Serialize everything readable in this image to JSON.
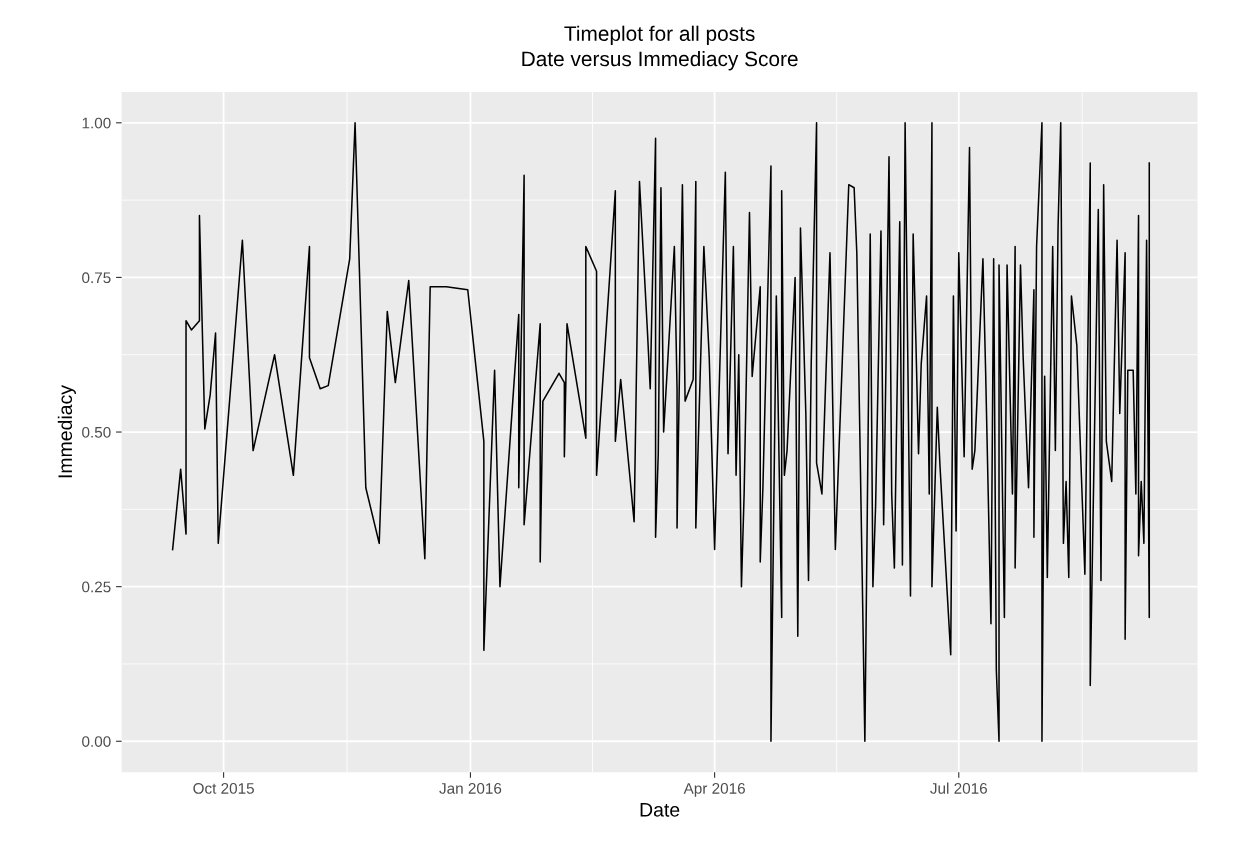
{
  "chart_data": {
    "type": "line",
    "title": "Timeplot for all posts",
    "subtitle": "Date versus Immediacy Score",
    "xlabel": "Date",
    "ylabel": "Immediacy",
    "x": [
      "2015-09-12",
      "2015-09-15",
      "2015-09-17",
      "2015-09-17",
      "2015-09-19",
      "2015-09-22",
      "2015-09-22",
      "2015-09-24",
      "2015-09-26",
      "2015-09-28",
      "2015-09-29",
      "2015-10-08",
      "2015-10-12",
      "2015-10-20",
      "2015-10-27",
      "2015-11-02",
      "2015-11-02",
      "2015-11-06",
      "2015-11-09",
      "2015-11-17",
      "2015-11-19",
      "2015-11-23",
      "2015-11-28",
      "2015-12-01",
      "2015-12-04",
      "2015-12-09",
      "2015-12-15",
      "2015-12-17",
      "2015-12-23",
      "2015-12-31",
      "2016-01-06",
      "2016-01-06",
      "2016-01-10",
      "2016-01-12",
      "2016-01-19",
      "2016-01-19",
      "2016-01-21",
      "2016-01-21",
      "2016-01-27",
      "2016-01-27",
      "2016-01-28",
      "2016-02-03",
      "2016-02-05",
      "2016-02-05",
      "2016-02-06",
      "2016-02-13",
      "2016-02-13",
      "2016-02-17",
      "2016-02-17",
      "2016-02-24",
      "2016-02-24",
      "2016-02-26",
      "2016-03-02",
      "2016-03-04",
      "2016-03-07",
      "2016-03-08",
      "2016-03-10",
      "2016-03-10",
      "2016-03-11",
      "2016-03-12",
      "2016-03-13",
      "2016-03-17",
      "2016-03-18",
      "2016-03-18",
      "2016-03-20",
      "2016-03-21",
      "2016-03-24",
      "2016-03-25",
      "2016-03-25",
      "2016-03-28",
      "2016-03-30",
      "2016-04-01",
      "2016-04-05",
      "2016-04-06",
      "2016-04-08",
      "2016-04-09",
      "2016-04-10",
      "2016-04-11",
      "2016-04-12",
      "2016-04-14",
      "2016-04-15",
      "2016-04-18",
      "2016-04-18",
      "2016-04-19",
      "2016-04-22",
      "2016-04-22",
      "2016-04-24",
      "2016-04-26",
      "2016-04-26",
      "2016-04-27",
      "2016-04-28",
      "2016-05-01",
      "2016-05-02",
      "2016-05-03",
      "2016-05-05",
      "2016-05-06",
      "2016-05-07",
      "2016-05-09",
      "2016-05-09",
      "2016-05-11",
      "2016-05-14",
      "2016-05-16",
      "2016-05-21",
      "2016-05-23",
      "2016-05-24",
      "2016-05-26",
      "2016-05-27",
      "2016-05-29",
      "2016-05-30",
      "2016-05-31",
      "2016-06-02",
      "2016-06-03",
      "2016-06-05",
      "2016-06-06",
      "2016-06-07",
      "2016-06-09",
      "2016-06-10",
      "2016-06-11",
      "2016-06-12",
      "2016-06-13",
      "2016-06-14",
      "2016-06-15",
      "2016-06-16",
      "2016-06-17",
      "2016-06-19",
      "2016-06-20",
      "2016-06-21",
      "2016-06-21",
      "2016-06-23",
      "2016-06-24",
      "2016-06-28",
      "2016-06-29",
      "2016-06-30",
      "2016-07-01",
      "2016-07-03",
      "2016-07-05",
      "2016-07-06",
      "2016-07-07",
      "2016-07-10",
      "2016-07-11",
      "2016-07-13",
      "2016-07-14",
      "2016-07-15",
      "2016-07-16",
      "2016-07-16",
      "2016-07-18",
      "2016-07-19",
      "2016-07-21",
      "2016-07-22",
      "2016-07-22",
      "2016-07-24",
      "2016-07-25",
      "2016-07-27",
      "2016-07-29",
      "2016-07-29",
      "2016-07-30",
      "2016-08-01",
      "2016-08-01",
      "2016-08-02",
      "2016-08-03",
      "2016-08-05",
      "2016-08-06",
      "2016-08-07",
      "2016-08-08",
      "2016-08-09",
      "2016-08-10",
      "2016-08-11",
      "2016-08-12",
      "2016-08-14",
      "2016-08-17",
      "2016-08-19",
      "2016-08-19",
      "2016-08-20",
      "2016-08-22",
      "2016-08-23",
      "2016-08-24",
      "2016-08-25",
      "2016-08-27",
      "2016-08-29",
      "2016-08-30",
      "2016-09-01",
      "2016-09-01",
      "2016-09-02",
      "2016-09-04",
      "2016-09-05",
      "2016-09-06",
      "2016-09-06",
      "2016-09-07",
      "2016-09-08",
      "2016-09-09",
      "2016-09-10",
      "2016-09-10"
    ],
    "series": [
      {
        "color": "#000000",
        "values": [
          0.31,
          0.44,
          0.335,
          0.68,
          0.665,
          0.68,
          0.85,
          0.505,
          0.56,
          0.66,
          0.32,
          0.81,
          0.47,
          0.625,
          0.43,
          0.8,
          0.62,
          0.57,
          0.575,
          0.78,
          1.0,
          0.41,
          0.32,
          0.695,
          0.58,
          0.745,
          0.295,
          0.735,
          0.735,
          0.73,
          0.485,
          0.147,
          0.6,
          0.25,
          0.69,
          0.41,
          0.915,
          0.35,
          0.675,
          0.29,
          0.55,
          0.595,
          0.58,
          0.46,
          0.675,
          0.49,
          0.8,
          0.76,
          0.43,
          0.89,
          0.485,
          0.585,
          0.355,
          0.905,
          0.66,
          0.57,
          0.975,
          0.33,
          0.465,
          0.895,
          0.5,
          0.8,
          0.57,
          0.345,
          0.9,
          0.55,
          0.585,
          0.905,
          0.345,
          0.8,
          0.62,
          0.31,
          0.92,
          0.465,
          0.8,
          0.43,
          0.625,
          0.25,
          0.4,
          0.855,
          0.59,
          0.735,
          0.29,
          0.41,
          0.93,
          0.0,
          0.72,
          0.2,
          0.89,
          0.43,
          0.47,
          0.75,
          0.17,
          0.83,
          0.53,
          0.26,
          0.61,
          1.0,
          0.45,
          0.4,
          0.79,
          0.31,
          0.9,
          0.895,
          0.79,
          0.27,
          0.0,
          0.82,
          0.25,
          0.38,
          0.825,
          0.35,
          0.945,
          0.4,
          0.28,
          0.84,
          0.285,
          1.0,
          0.62,
          0.235,
          0.82,
          0.65,
          0.465,
          0.61,
          0.72,
          0.4,
          1.0,
          0.25,
          0.54,
          0.445,
          0.14,
          0.72,
          0.34,
          0.79,
          0.46,
          0.96,
          0.44,
          0.47,
          0.78,
          0.6,
          0.19,
          0.78,
          0.115,
          0.0,
          0.77,
          0.2,
          0.77,
          0.4,
          0.8,
          0.28,
          0.77,
          0.62,
          0.41,
          0.73,
          0.33,
          0.8,
          1.0,
          0.0,
          0.59,
          0.265,
          0.8,
          0.47,
          0.83,
          1.0,
          0.32,
          0.42,
          0.265,
          0.72,
          0.64,
          0.27,
          0.935,
          0.09,
          0.35,
          0.86,
          0.26,
          0.9,
          0.485,
          0.42,
          0.81,
          0.53,
          0.79,
          0.165,
          0.6,
          0.6,
          0.4,
          0.85,
          0.3,
          0.42,
          0.32,
          0.81,
          0.2,
          0.935
        ]
      }
    ],
    "xlim": [
      "2015-08-24",
      "2016-09-28"
    ],
    "xticks": [
      {
        "value": "2015-10-01",
        "label": "Oct 2015"
      },
      {
        "value": "2016-01-01",
        "label": "Jan 2016"
      },
      {
        "value": "2016-04-01",
        "label": "Apr 2016"
      },
      {
        "value": "2016-07-01",
        "label": "Jul 2016"
      }
    ],
    "ylim": [
      -0.05,
      1.05
    ],
    "yticks": [
      {
        "value": 0,
        "label": "0.00"
      },
      {
        "value": 0.25,
        "label": "0.25"
      },
      {
        "value": 0.5,
        "label": "0.50"
      },
      {
        "value": 0.75,
        "label": "0.75"
      },
      {
        "value": 1,
        "label": "1.00"
      }
    ],
    "grid": true,
    "legend": false
  }
}
